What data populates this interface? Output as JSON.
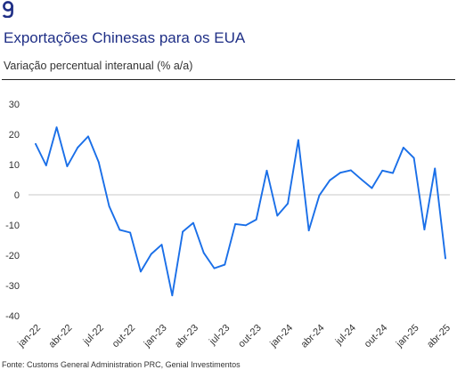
{
  "header": {
    "logo_icon": "genial-g-logo-icon",
    "title": "Exportações Chinesas para os EUA",
    "subtitle": "Variação percentual interanual (% a/a)"
  },
  "footer": {
    "source": "Fonte: Customs General Administration PRC, Genial Investimentos"
  },
  "colors": {
    "line": "#1a6fe8",
    "title": "#1f2f86",
    "zero_line": "#c8c8c8"
  },
  "chart_data": {
    "type": "line",
    "title": "",
    "xlabel": "",
    "ylabel": "",
    "ylim": [
      -40,
      30
    ],
    "yticks": [
      30,
      20,
      10,
      0,
      -10,
      -20,
      -30,
      -40
    ],
    "grid": false,
    "legend": "none",
    "x_tick_labels": [
      "jan-22",
      "abr-22",
      "jul-22",
      "out-22",
      "jan-23",
      "abr-23",
      "jul-23",
      "out-23",
      "jan-24",
      "abr-24",
      "jul-24",
      "out-24",
      "jan-25",
      "abr-25"
    ],
    "x": [
      "jan-22",
      "fev-22",
      "mar-22",
      "abr-22",
      "mai-22",
      "jun-22",
      "jul-22",
      "ago-22",
      "set-22",
      "out-22",
      "nov-22",
      "dez-22",
      "jan-23",
      "fev-23",
      "mar-23",
      "abr-23",
      "mai-23",
      "jun-23",
      "jul-23",
      "ago-23",
      "set-23",
      "out-23",
      "nov-23",
      "dez-23",
      "jan-24",
      "fev-24",
      "mar-24",
      "abr-24",
      "mai-24",
      "jun-24",
      "jul-24",
      "ago-24",
      "set-24",
      "out-24",
      "nov-24",
      "dez-24",
      "jan-25",
      "fev-25",
      "mar-25",
      "abr-25"
    ],
    "series": [
      {
        "values": [
          16.8,
          9.7,
          22.3,
          9.4,
          15.6,
          19.3,
          10.8,
          -3.8,
          -11.6,
          -12.5,
          -25.4,
          -19.6,
          -16.5,
          -33.3,
          -12.2,
          -9.3,
          -19.2,
          -24.3,
          -23.1,
          -9.7,
          -10.1,
          -8.2,
          8.0,
          -6.9,
          -2.9,
          18.1,
          -11.8,
          -0.2,
          4.8,
          7.3,
          8.1,
          5.1,
          2.2,
          8.0,
          7.2,
          15.6,
          12.2,
          -11.5,
          8.7,
          -21.0
        ]
      }
    ]
  }
}
